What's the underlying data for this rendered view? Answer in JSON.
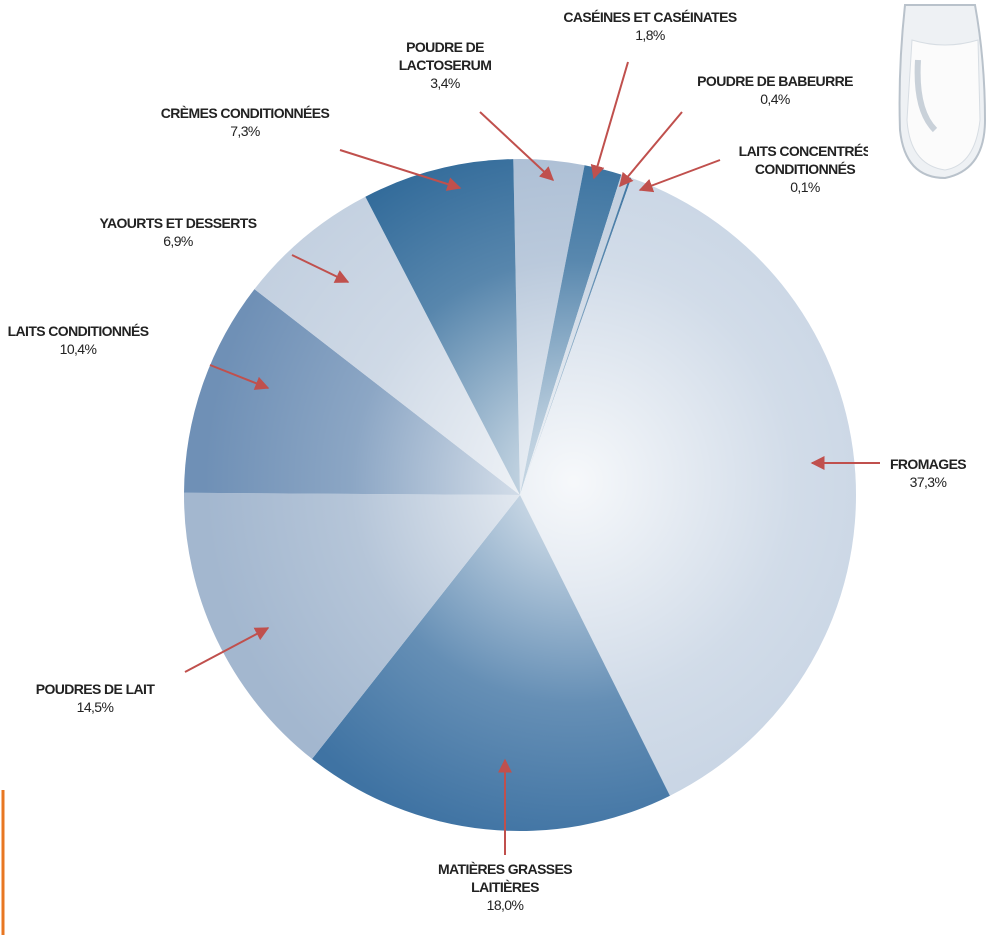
{
  "chart_data": {
    "type": "pie",
    "categories": [
      "POUDRE DE\nLACTOSERUM",
      "CASÉINES ET CASÉINATES",
      "POUDRE DE BABEURRE",
      "LAITS CONCENTRÉS\nCONDITIONNÉS",
      "FROMAGES",
      "MATIÈRES GRASSES\nLAITIÈRES",
      "POUDRES DE LAIT",
      "LAITS CONDITIONNÉS",
      "YAOURTS ET DESSERTS",
      "CRÈMES CONDITIONNÉES"
    ],
    "values": [
      3.4,
      1.8,
      0.4,
      0.1,
      37.3,
      18.0,
      14.5,
      10.4,
      6.9,
      7.3
    ],
    "value_labels": [
      "3,4%",
      "1,8%",
      "0,4%",
      "0,1%",
      "37,3%",
      "18,0%",
      "14,5%",
      "10,4%",
      "6,9%",
      "7,3%"
    ],
    "colors": [
      "#a9bcd3",
      "#2f6a9a",
      "#bccadb",
      "#2f6a9a",
      "#c6d3e3",
      "#3f73a3",
      "#a3b7cf",
      "#6f90b6",
      "#c3d0e0",
      "#2e6898"
    ]
  }
}
